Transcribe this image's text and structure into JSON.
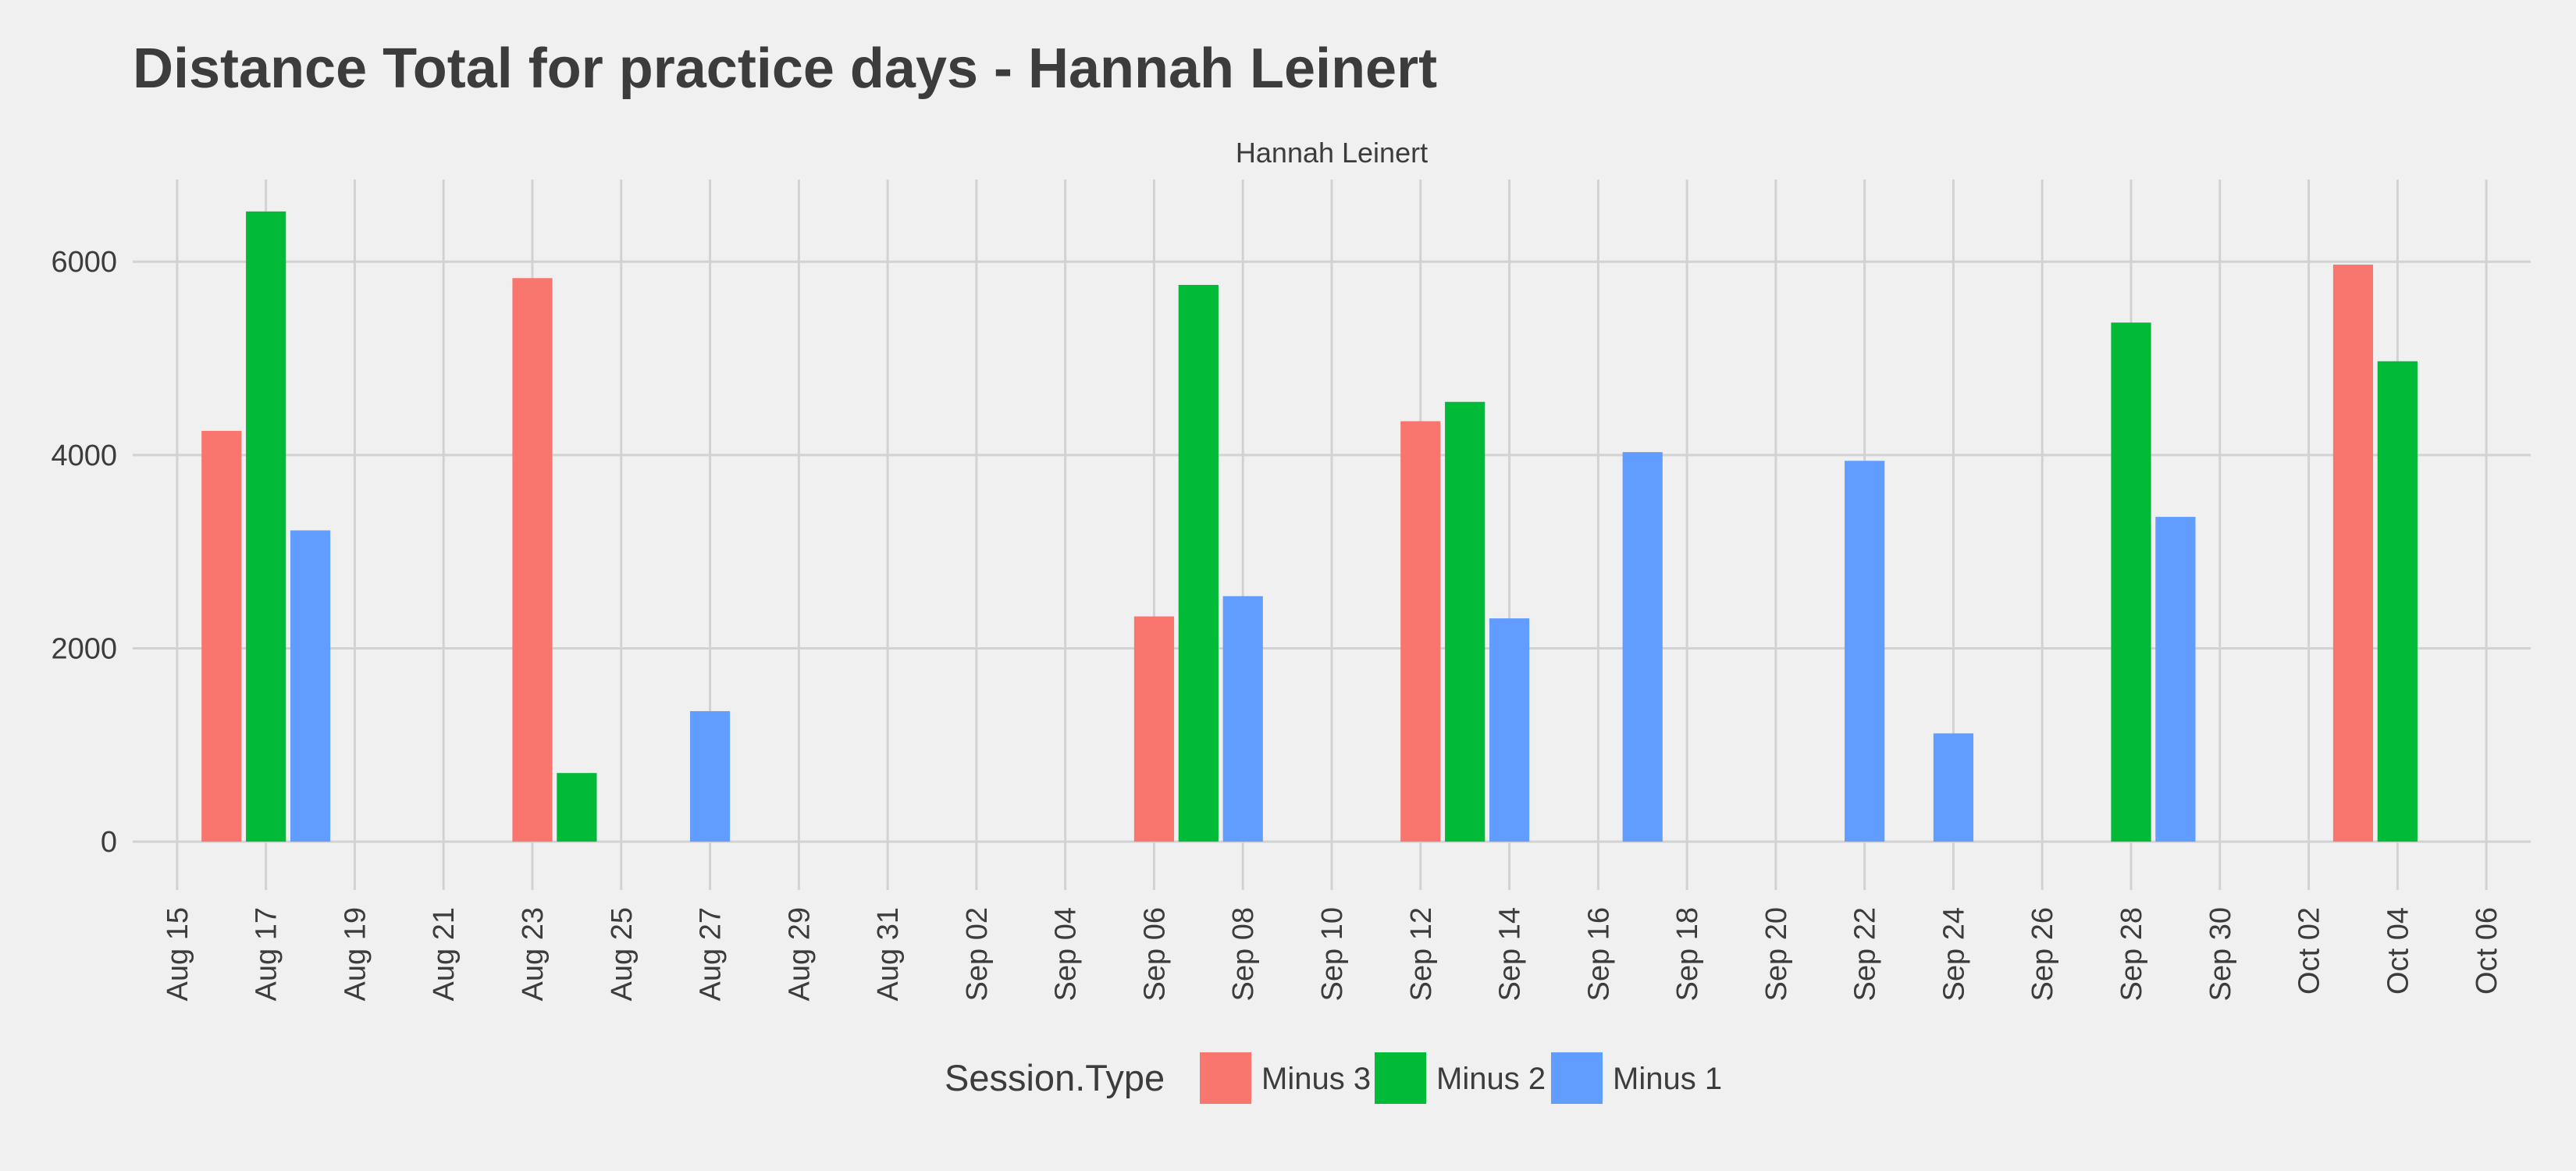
{
  "chart_data": {
    "type": "bar",
    "title": "Distance Total for practice days -  Hannah Leinert",
    "facet_label": "Hannah Leinert",
    "xlabel": "",
    "ylabel": "",
    "x_range": [
      "2024-08-14",
      "2024-10-07"
    ],
    "ylim": [
      -500,
      6850
    ],
    "y_ticks": [
      0,
      2000,
      4000,
      6000
    ],
    "x_ticks": [
      {
        "date": "2024-08-15",
        "label": "Aug 15"
      },
      {
        "date": "2024-08-17",
        "label": "Aug 17"
      },
      {
        "date": "2024-08-19",
        "label": "Aug 19"
      },
      {
        "date": "2024-08-21",
        "label": "Aug 21"
      },
      {
        "date": "2024-08-23",
        "label": "Aug 23"
      },
      {
        "date": "2024-08-25",
        "label": "Aug 25"
      },
      {
        "date": "2024-08-27",
        "label": "Aug 27"
      },
      {
        "date": "2024-08-29",
        "label": "Aug 29"
      },
      {
        "date": "2024-08-31",
        "label": "Aug 31"
      },
      {
        "date": "2024-09-02",
        "label": "Sep 02"
      },
      {
        "date": "2024-09-04",
        "label": "Sep 04"
      },
      {
        "date": "2024-09-06",
        "label": "Sep 06"
      },
      {
        "date": "2024-09-08",
        "label": "Sep 08"
      },
      {
        "date": "2024-09-10",
        "label": "Sep 10"
      },
      {
        "date": "2024-09-12",
        "label": "Sep 12"
      },
      {
        "date": "2024-09-14",
        "label": "Sep 14"
      },
      {
        "date": "2024-09-16",
        "label": "Sep 16"
      },
      {
        "date": "2024-09-18",
        "label": "Sep 18"
      },
      {
        "date": "2024-09-20",
        "label": "Sep 20"
      },
      {
        "date": "2024-09-22",
        "label": "Sep 22"
      },
      {
        "date": "2024-09-24",
        "label": "Sep 24"
      },
      {
        "date": "2024-09-26",
        "label": "Sep 26"
      },
      {
        "date": "2024-09-28",
        "label": "Sep 28"
      },
      {
        "date": "2024-09-30",
        "label": "Sep 30"
      },
      {
        "date": "2024-10-02",
        "label": "Oct 02"
      },
      {
        "date": "2024-10-04",
        "label": "Oct 04"
      },
      {
        "date": "2024-10-06",
        "label": "Oct 06"
      }
    ],
    "grid": true,
    "legend": {
      "title": "Session.Type",
      "position": "bottom"
    },
    "series": [
      {
        "name": "Minus 3",
        "color": "#f8766d",
        "points": [
          {
            "x": "2024-08-16",
            "y": 4250
          },
          {
            "x": "2024-08-23",
            "y": 5830
          },
          {
            "x": "2024-09-06",
            "y": 2330
          },
          {
            "x": "2024-09-12",
            "y": 4350
          },
          {
            "x": "2024-10-03",
            "y": 5970
          }
        ]
      },
      {
        "name": "Minus 2",
        "color": "#00ba38",
        "points": [
          {
            "x": "2024-08-17",
            "y": 6520
          },
          {
            "x": "2024-08-24",
            "y": 710
          },
          {
            "x": "2024-09-07",
            "y": 5760
          },
          {
            "x": "2024-09-13",
            "y": 4550
          },
          {
            "x": "2024-09-28",
            "y": 5370
          },
          {
            "x": "2024-10-04",
            "y": 4970
          }
        ]
      },
      {
        "name": "Minus 1",
        "color": "#619cff",
        "points": [
          {
            "x": "2024-08-18",
            "y": 3220
          },
          {
            "x": "2024-08-27",
            "y": 1350
          },
          {
            "x": "2024-09-08",
            "y": 2540
          },
          {
            "x": "2024-09-14",
            "y": 2310
          },
          {
            "x": "2024-09-17",
            "y": 4030
          },
          {
            "x": "2024-09-22",
            "y": 3940
          },
          {
            "x": "2024-09-24",
            "y": 1120
          },
          {
            "x": "2024-09-29",
            "y": 3360
          }
        ]
      }
    ]
  }
}
